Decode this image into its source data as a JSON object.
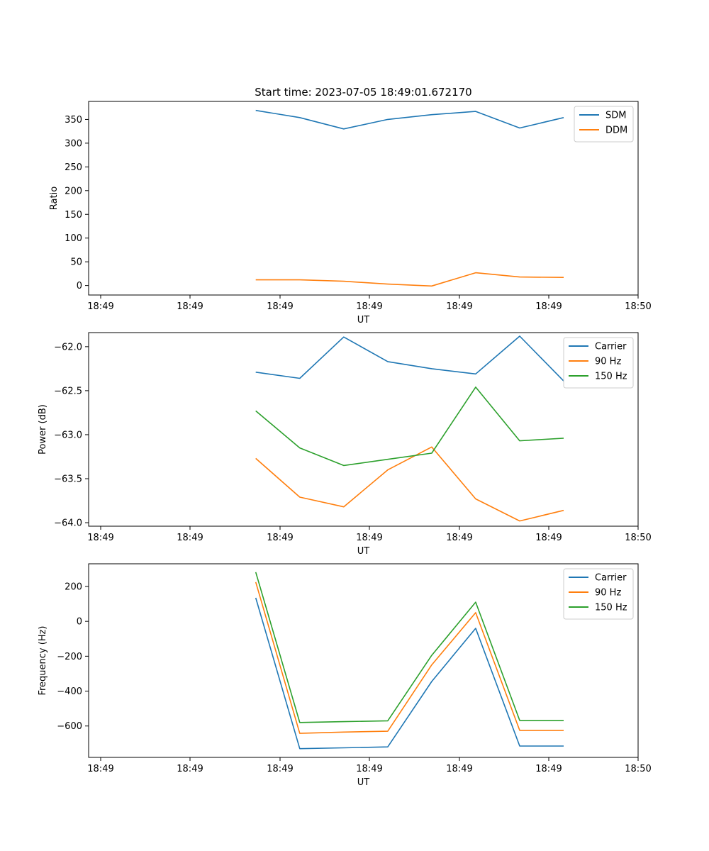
{
  "chart_data": [
    {
      "type": "line",
      "title": "Start time: 2023-07-05 18:49:01.672170",
      "xlabel": "UT",
      "ylabel": "Ratio",
      "x_tick_labels": [
        "18:49",
        "18:49",
        "18:49",
        "18:49",
        "18:49",
        "18:49",
        "18:50"
      ],
      "y_ticks": [
        0,
        50,
        100,
        150,
        200,
        250,
        300,
        350
      ],
      "y_tick_labels": [
        "0",
        "50",
        "100",
        "150",
        "200",
        "250",
        "300",
        "350"
      ],
      "ylim": [
        -20,
        388
      ],
      "x": [
        2.47,
        3.12,
        3.77,
        4.42,
        5.07,
        5.72,
        6.37,
        7.02
      ],
      "xlim": [
        0,
        8.12
      ],
      "legend_position": "upper right",
      "series": [
        {
          "name": "SDM",
          "color": "#1f77b4",
          "values": [
            369,
            354,
            330,
            350,
            360,
            367,
            332,
            354
          ]
        },
        {
          "name": "DDM",
          "color": "#ff7f0e",
          "values": [
            12,
            12,
            9,
            3,
            -1,
            27,
            18,
            17
          ]
        }
      ]
    },
    {
      "type": "line",
      "title": "",
      "xlabel": "UT",
      "ylabel": "Power (dB)",
      "x_tick_labels": [
        "18:49",
        "18:49",
        "18:49",
        "18:49",
        "18:49",
        "18:49",
        "18:50"
      ],
      "y_ticks": [
        -64.0,
        -63.5,
        -63.0,
        -62.5,
        -62.0
      ],
      "y_tick_labels": [
        "−64.0",
        "−63.5",
        "−63.0",
        "−62.5",
        "−62.0"
      ],
      "ylim": [
        -64.04,
        -61.84
      ],
      "x": [
        2.47,
        3.12,
        3.77,
        4.42,
        5.07,
        5.72,
        6.37,
        7.02
      ],
      "xlim": [
        0,
        8.12
      ],
      "legend_position": "upper right",
      "series": [
        {
          "name": "Carrier",
          "color": "#1f77b4",
          "values": [
            -62.29,
            -62.36,
            -61.89,
            -62.17,
            -62.25,
            -62.31,
            -61.88,
            -62.39
          ]
        },
        {
          "name": "90 Hz",
          "color": "#ff7f0e",
          "values": [
            -63.27,
            -63.71,
            -63.82,
            -63.4,
            -63.14,
            -63.73,
            -63.98,
            -63.86
          ]
        },
        {
          "name": "150 Hz",
          "color": "#2ca02c",
          "values": [
            -62.73,
            -63.15,
            -63.35,
            -63.28,
            -63.21,
            -62.46,
            -63.07,
            -63.04
          ]
        }
      ]
    },
    {
      "type": "line",
      "title": "",
      "xlabel": "UT",
      "ylabel": "Frequency (Hz)",
      "x_tick_labels": [
        "18:49",
        "18:49",
        "18:49",
        "18:49",
        "18:49",
        "18:49",
        "18:50"
      ],
      "y_ticks": [
        -600,
        -400,
        -200,
        0,
        200
      ],
      "y_tick_labels": [
        "−600",
        "−400",
        "−200",
        "0",
        "200"
      ],
      "ylim": [
        -780,
        330
      ],
      "x": [
        2.47,
        3.12,
        3.77,
        4.42,
        5.07,
        5.72,
        6.37,
        7.02
      ],
      "xlim": [
        0,
        8.12
      ],
      "legend_position": "upper right",
      "series": [
        {
          "name": "Carrier",
          "color": "#1f77b4",
          "values": [
            135,
            -730,
            -725,
            -720,
            -345,
            -40,
            -715,
            -715
          ]
        },
        {
          "name": "90 Hz",
          "color": "#ff7f0e",
          "values": [
            225,
            -642,
            -635,
            -630,
            -250,
            50,
            -625,
            -625
          ]
        },
        {
          "name": "150 Hz",
          "color": "#2ca02c",
          "values": [
            282,
            -580,
            -575,
            -570,
            -195,
            110,
            -568,
            -568
          ]
        }
      ]
    }
  ]
}
